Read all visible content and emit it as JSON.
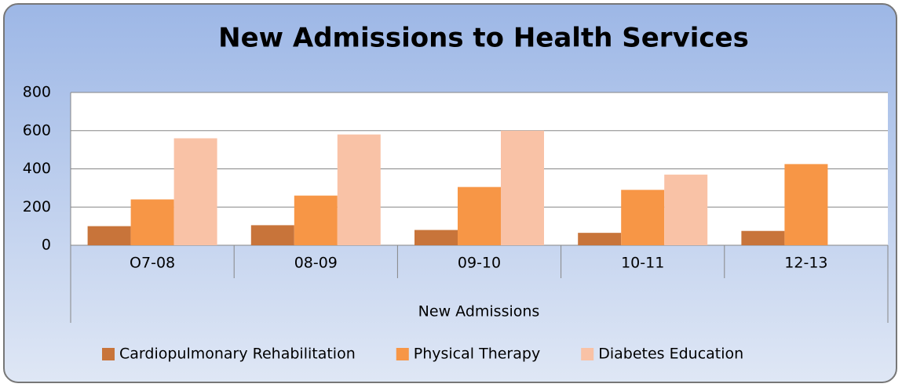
{
  "chart_data": {
    "type": "bar",
    "title": "New Admissions to Health Services",
    "categories": [
      "O7-08",
      "08-09",
      "09-10",
      "10-11",
      "12-13"
    ],
    "x_label": "New Admissions",
    "series": [
      {
        "name": "Cardiopulmonary Rehabilitation",
        "color": "#c8743a",
        "values": [
          100,
          105,
          80,
          65,
          75
        ]
      },
      {
        "name": "Physical Therapy",
        "color": "#f79646",
        "values": [
          240,
          260,
          305,
          290,
          425
        ]
      },
      {
        "name": "Diabetes Education",
        "color": "#f9c2a6",
        "values": [
          560,
          580,
          600,
          370,
          null
        ]
      }
    ],
    "ylim": [
      0,
      800
    ],
    "yticks": [
      0,
      200,
      400,
      600,
      800
    ],
    "grid": true,
    "legend": "bottom"
  }
}
